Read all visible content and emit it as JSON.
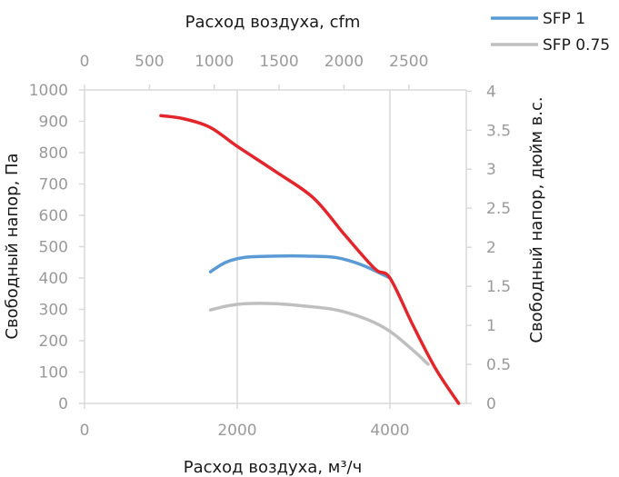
{
  "chart_data": {
    "type": "line",
    "xlabel": "Расход воздуха, м³/ч",
    "ylabel": "Свободный  напор, Па",
    "x2label": "Расход воздуха, cfm",
    "y2label": "Свободный  напор, дюйм в.с.",
    "xlim": [
      0,
      5000
    ],
    "ylim": [
      0,
      1000
    ],
    "x2lim": [
      0,
      2943
    ],
    "y2lim": [
      0,
      4.015
    ],
    "x_ticks": [
      0,
      2000,
      4000
    ],
    "y_ticks": [
      0,
      100,
      200,
      300,
      400,
      500,
      600,
      700,
      800,
      900,
      1000
    ],
    "x2_ticks": [
      0,
      500,
      1000,
      1500,
      2000,
      2500
    ],
    "y2_ticks": [
      0,
      0.5,
      1,
      1.5,
      2,
      2.5,
      3,
      3.5,
      4
    ],
    "grid": "vertical",
    "legend_position": "top-right",
    "series": [
      {
        "name": "",
        "color": "#e3262b",
        "x": [
          1000,
          1300,
          1650,
          2000,
          2500,
          3000,
          3400,
          3800,
          4000,
          4300,
          4600,
          4900
        ],
        "y": [
          918,
          908,
          880,
          820,
          740,
          655,
          540,
          430,
          400,
          250,
          110,
          0
        ]
      },
      {
        "name": "SFP 1",
        "color": "#5b9bd5",
        "x": [
          1650,
          1850,
          2100,
          2500,
          2900,
          3300,
          3650,
          4000
        ],
        "y": [
          420,
          450,
          466,
          470,
          470,
          465,
          440,
          400
        ]
      },
      {
        "name": "SFP 0.75",
        "color": "#bfbfbf",
        "x": [
          1650,
          1850,
          2100,
          2500,
          2900,
          3300,
          3700,
          4000,
          4300,
          4500
        ],
        "y": [
          298,
          310,
          318,
          318,
          310,
          298,
          268,
          230,
          170,
          125
        ]
      }
    ]
  }
}
